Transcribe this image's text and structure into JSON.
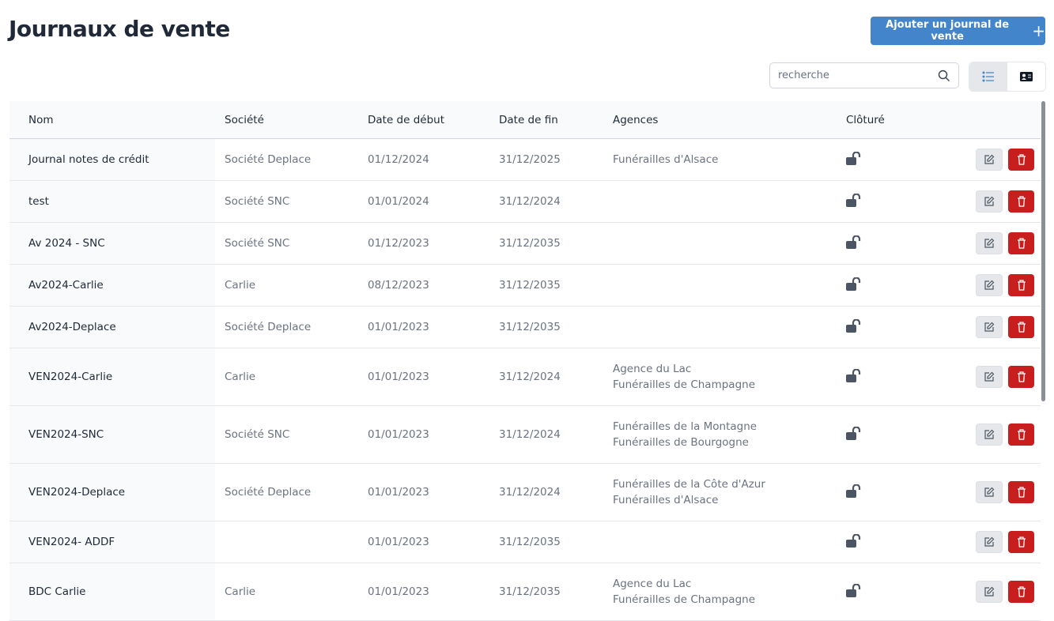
{
  "header": {
    "title": "Journaux de vente",
    "add_label": "Ajouter un journal de vente",
    "add_icon": "plus-icon"
  },
  "search": {
    "placeholder": "recherche",
    "value": ""
  },
  "view_toggle": {
    "active": "list",
    "options": [
      "list-icon",
      "card-icon"
    ]
  },
  "table": {
    "columns": [
      "Nom",
      "Société",
      "Date de début",
      "Date de fin",
      "Agences",
      "Clôturé"
    ],
    "rows": [
      {
        "nom": "Journal notes de crédit",
        "societe": "Société Deplace",
        "debut": "01/12/2024",
        "fin": "31/12/2025",
        "agences": [
          "Funérailles d'Alsace"
        ],
        "cloture": false
      },
      {
        "nom": "test",
        "societe": "Société SNC",
        "debut": "01/01/2024",
        "fin": "31/12/2024",
        "agences": [],
        "cloture": false
      },
      {
        "nom": "Av 2024 - SNC",
        "societe": "Société SNC",
        "debut": "01/12/2023",
        "fin": "31/12/2035",
        "agences": [],
        "cloture": false
      },
      {
        "nom": "Av2024-Carlie",
        "societe": "Carlie",
        "debut": "08/12/2023",
        "fin": "31/12/2035",
        "agences": [],
        "cloture": false
      },
      {
        "nom": "Av2024-Deplace",
        "societe": "Société Deplace",
        "debut": "01/01/2023",
        "fin": "31/12/2035",
        "agences": [],
        "cloture": false
      },
      {
        "nom": "VEN2024-Carlie",
        "societe": "Carlie",
        "debut": "01/01/2023",
        "fin": "31/12/2024",
        "agences": [
          "Agence du Lac",
          "Funérailles de Champagne"
        ],
        "cloture": false
      },
      {
        "nom": "VEN2024-SNC",
        "societe": "Société SNC",
        "debut": "01/01/2023",
        "fin": "31/12/2024",
        "agences": [
          "Funérailles de la Montagne",
          "Funérailles de Bourgogne"
        ],
        "cloture": false
      },
      {
        "nom": "VEN2024-Deplace",
        "societe": "Société Deplace",
        "debut": "01/01/2023",
        "fin": "31/12/2024",
        "agences": [
          "Funérailles de la Côte d'Azur",
          "Funérailles d'Alsace"
        ],
        "cloture": false
      },
      {
        "nom": "VEN2024- ADDF",
        "societe": "",
        "debut": "01/01/2023",
        "fin": "31/12/2035",
        "agences": [],
        "cloture": false
      },
      {
        "nom": "BDC Carlie",
        "societe": "Carlie",
        "debut": "01/01/2023",
        "fin": "31/12/2035",
        "agences": [
          "Agence du Lac",
          "Funérailles de Champagne"
        ],
        "cloture": false
      }
    ]
  },
  "colors": {
    "primary": "#4285cb",
    "danger": "#c81e1e",
    "lock": "#4b5563"
  }
}
